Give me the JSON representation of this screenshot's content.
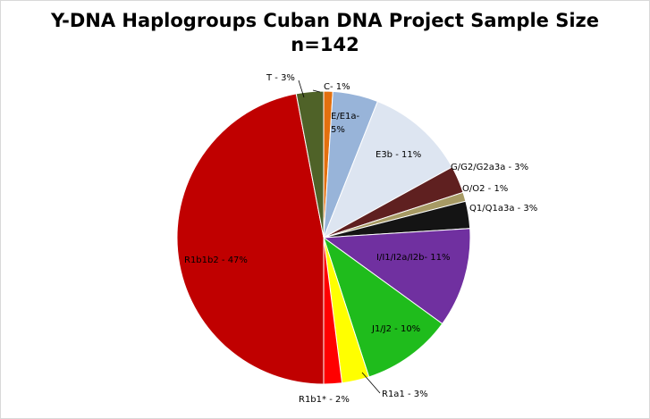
{
  "chart_data": {
    "type": "pie",
    "title": "Y-DNA Haplogroups Cuban DNA Project Sample Size",
    "subtitle": "n=142",
    "slices": [
      {
        "label_lines": [
          "C- 1%"
        ],
        "value": 1,
        "color": "#e3700f"
      },
      {
        "label_lines": [
          "E/E1a-",
          "5%"
        ],
        "value": 5,
        "color": "#98b4d9"
      },
      {
        "label_lines": [
          "E3b - 11%"
        ],
        "value": 11,
        "color": "#dde5f1"
      },
      {
        "label_lines": [
          "G/G2/G2a3a - 3%"
        ],
        "value": 3,
        "color": "#5f2020"
      },
      {
        "label_lines": [
          "O/O2 - 1%"
        ],
        "value": 1,
        "color": "#a79a64"
      },
      {
        "label_lines": [
          "Q1/Q1a3a - 3%"
        ],
        "value": 3,
        "color": "#141414"
      },
      {
        "label_lines": [
          "I/I1/I2a/I2b- 11%"
        ],
        "value": 11,
        "color": "#7030a0"
      },
      {
        "label_lines": [
          "J1/J2 - 10%"
        ],
        "value": 10,
        "color": "#1fbc1c"
      },
      {
        "label_lines": [
          "R1a1 - 3%"
        ],
        "value": 3,
        "color": "#ffff00"
      },
      {
        "label_lines": [
          "R1b1* - 2%"
        ],
        "value": 2,
        "color": "#ff0000"
      },
      {
        "label_lines": [
          "R1b1b2 - 47%"
        ],
        "value": 47,
        "color": "#c00000"
      },
      {
        "label_lines": [
          "T - 3%"
        ],
        "value": 3,
        "color": "#4f6228"
      }
    ],
    "start_angle_deg": 0,
    "direction": "clockwise",
    "legend": "none",
    "data_labels": "slice labels with percentage"
  }
}
